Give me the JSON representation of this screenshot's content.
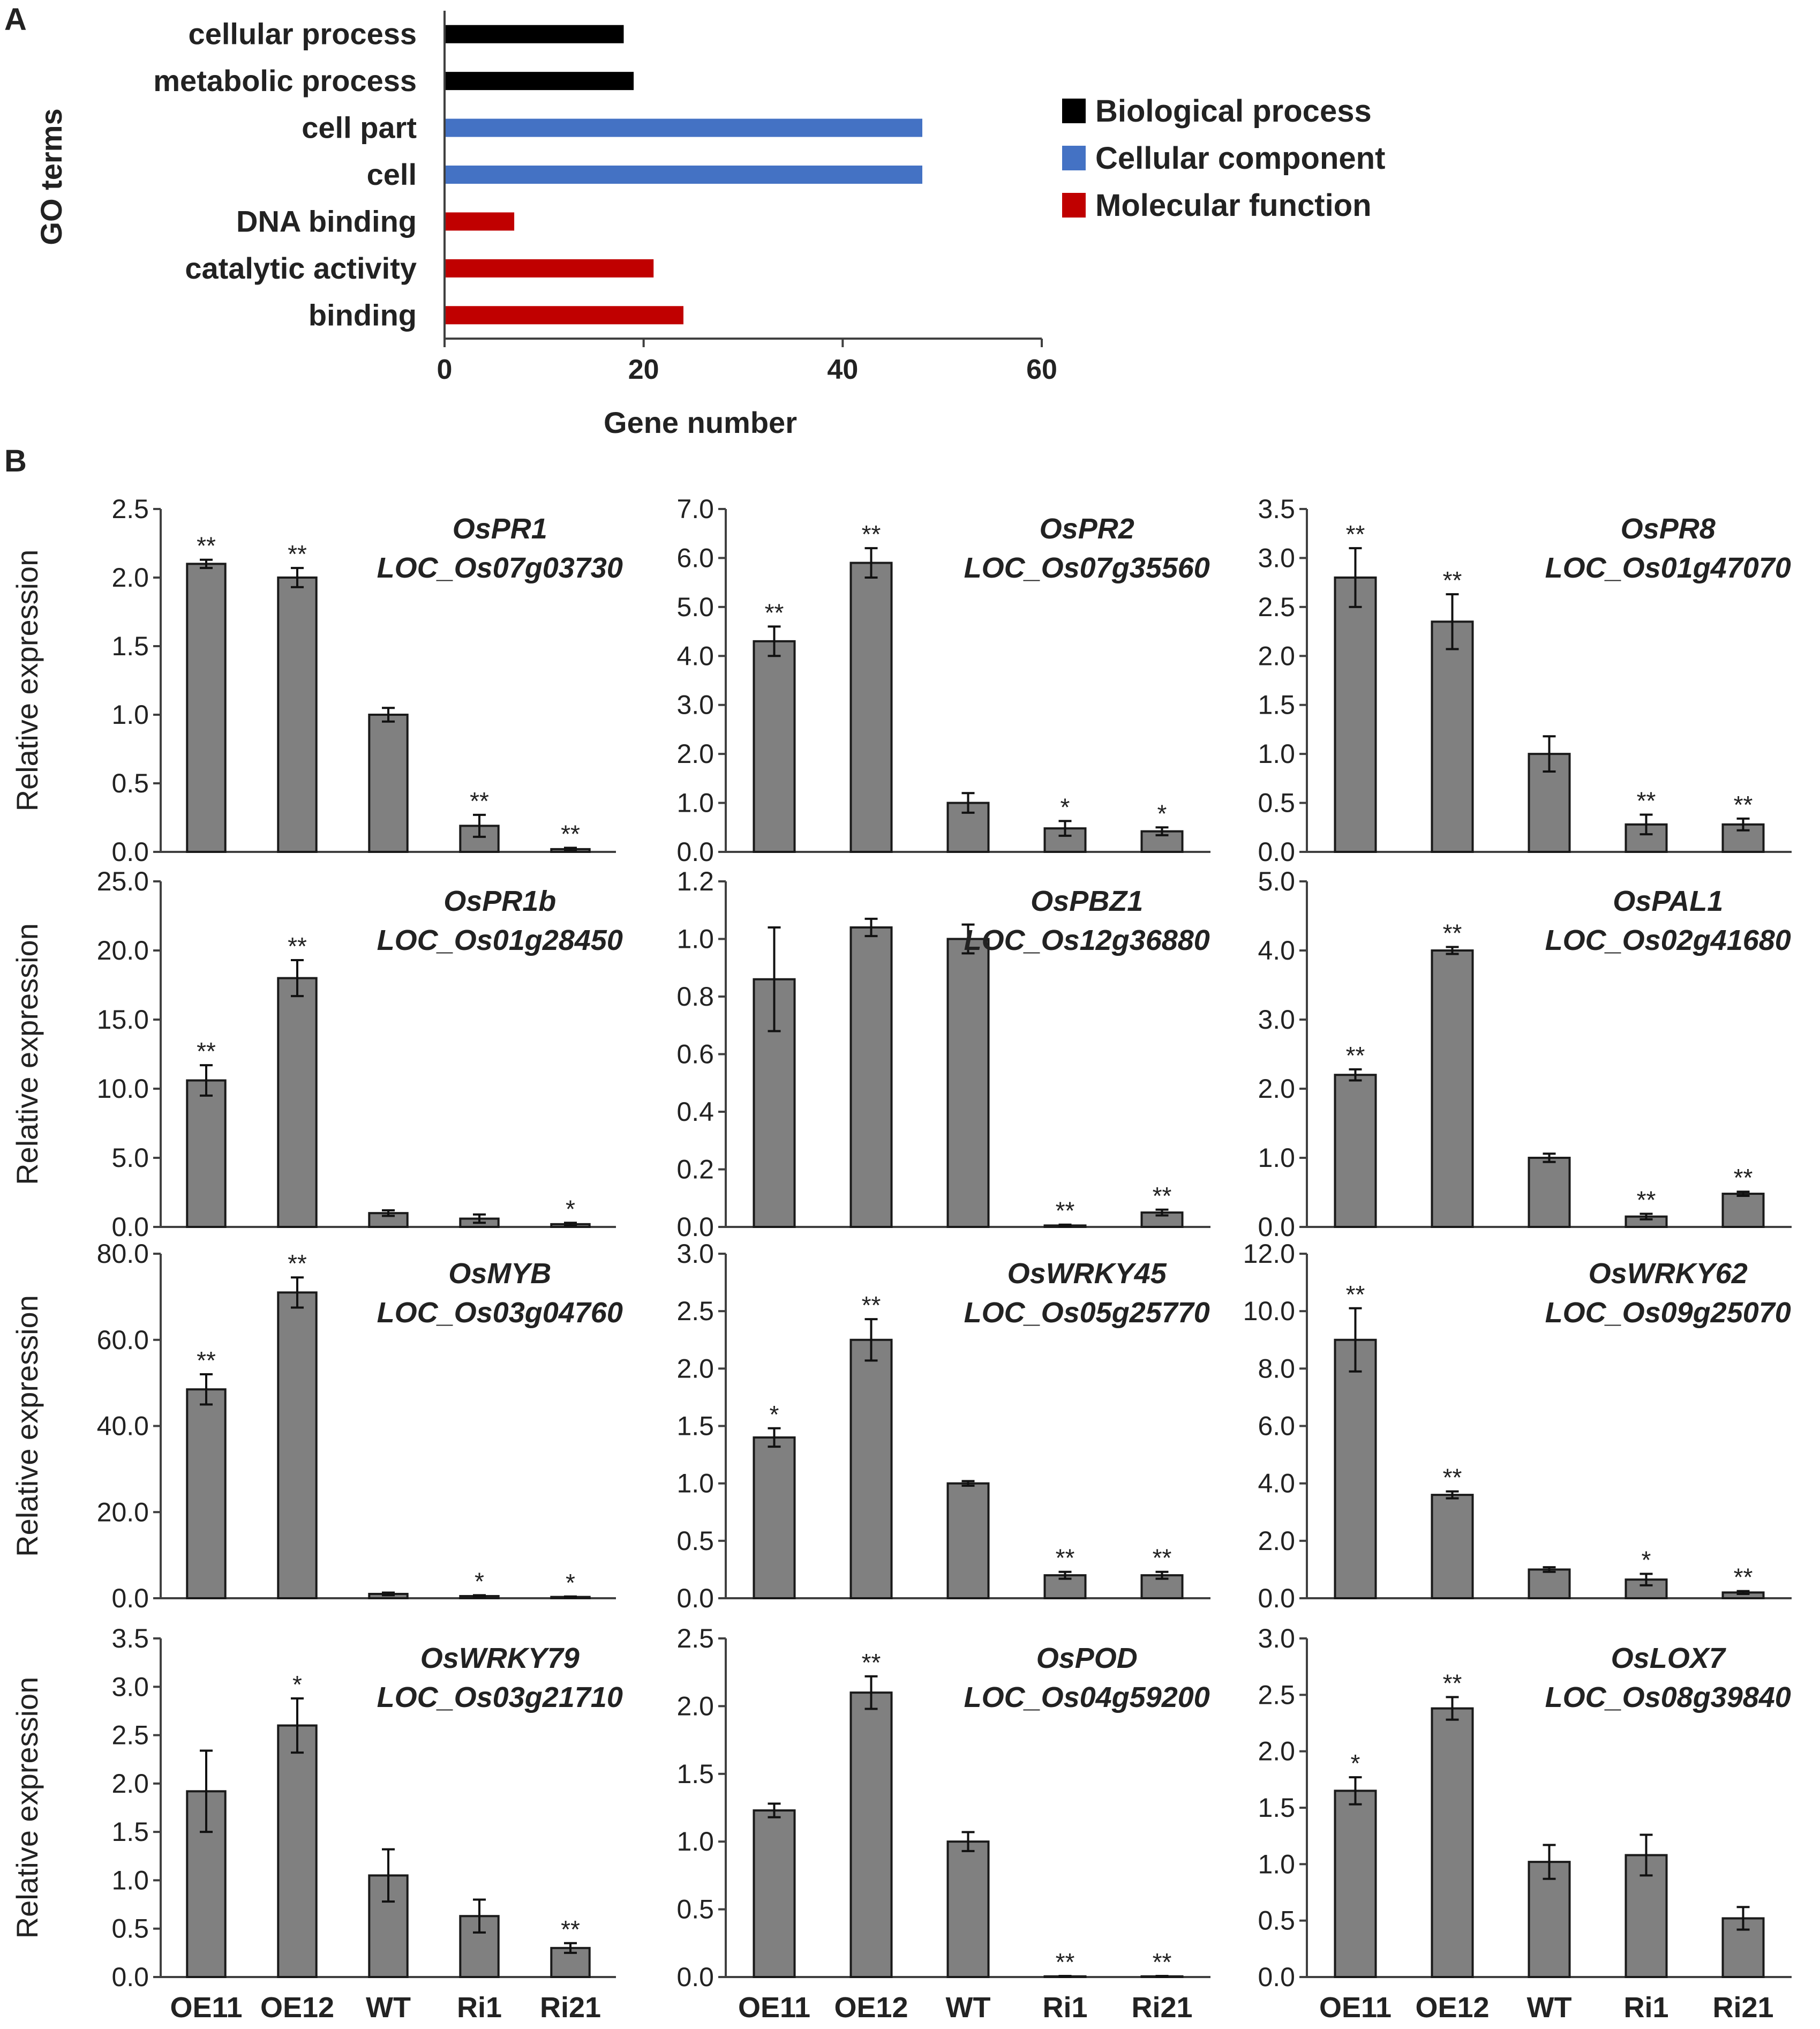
{
  "panel_a_label": "A",
  "panel_b_label": "B",
  "chart_data": [
    {
      "type": "bar",
      "orientation": "horizontal",
      "title": "",
      "xlabel": "Gene number",
      "ylabel": "GO terms",
      "xlim": [
        0,
        60
      ],
      "xticks": [
        "0",
        "20",
        "40",
        "60"
      ],
      "categories": [
        "cellular process",
        "metabolic process",
        "cell part",
        "cell",
        "DNA binding",
        "catalytic activity",
        "binding"
      ],
      "values": [
        18,
        19,
        48,
        48,
        7,
        21,
        24
      ],
      "groups": [
        "Biological process",
        "Biological process",
        "Cellular component",
        "Cellular component",
        "Molecular function",
        "Molecular function",
        "Molecular function"
      ],
      "legend": [
        {
          "label": "Biological process",
          "color": "#000000"
        },
        {
          "label": "Cellular component",
          "color": "#4472C4"
        },
        {
          "label": "Molecular function",
          "color": "#C00000"
        }
      ],
      "legend_position": "right"
    },
    {
      "type": "bar",
      "gene": "OsPR1",
      "locus": "LOC_Os07g03730",
      "ylabel": "Relative expression",
      "categories": [
        "OE11",
        "OE12",
        "WT",
        "Ri1",
        "Ri21"
      ],
      "values": [
        2.1,
        2.0,
        1.0,
        0.19,
        0.02
      ],
      "errors": [
        0.03,
        0.07,
        0.05,
        0.08,
        0.01
      ],
      "significance": [
        "**",
        "**",
        "",
        "**",
        "**"
      ],
      "ylim": [
        0,
        2.5
      ],
      "yticks": [
        "0.0",
        "0.5",
        "1.0",
        "1.5",
        "2.0",
        "2.5"
      ],
      "bar_color": "#808080"
    },
    {
      "type": "bar",
      "gene": "OsPR2",
      "locus": "LOC_Os07g35560",
      "categories": [
        "OE11",
        "OE12",
        "WT",
        "Ri1",
        "Ri21"
      ],
      "values": [
        4.3,
        5.9,
        1.0,
        0.48,
        0.42
      ],
      "errors": [
        0.3,
        0.3,
        0.2,
        0.15,
        0.08
      ],
      "significance": [
        "**",
        "**",
        "",
        "*",
        "*"
      ],
      "ylim": [
        0,
        7.0
      ],
      "yticks": [
        "0.0",
        "1.0",
        "2.0",
        "3.0",
        "4.0",
        "5.0",
        "6.0",
        "7.0"
      ],
      "bar_color": "#808080"
    },
    {
      "type": "bar",
      "gene": "OsPR8",
      "locus": "LOC_Os01g47070",
      "categories": [
        "OE11",
        "OE12",
        "WT",
        "Ri1",
        "Ri21"
      ],
      "values": [
        2.8,
        2.35,
        1.0,
        0.28,
        0.28
      ],
      "errors": [
        0.3,
        0.28,
        0.18,
        0.1,
        0.06
      ],
      "significance": [
        "**",
        "**",
        "",
        "**",
        "**"
      ],
      "ylim": [
        0,
        3.5
      ],
      "yticks": [
        "0.0",
        "0.5",
        "1.0",
        "1.5",
        "2.0",
        "2.5",
        "3.0",
        "3.5"
      ],
      "bar_color": "#808080"
    },
    {
      "type": "bar",
      "gene": "OsPR1b",
      "locus": "LOC_Os01g28450",
      "ylabel": "Relative expression",
      "categories": [
        "OE11",
        "OE12",
        "WT",
        "Ri1",
        "Ri21"
      ],
      "values": [
        10.6,
        18.0,
        1.0,
        0.6,
        0.2
      ],
      "errors": [
        1.1,
        1.3,
        0.2,
        0.3,
        0.1
      ],
      "significance": [
        "**",
        "**",
        "",
        "",
        "*"
      ],
      "ylim": [
        0,
        25.0
      ],
      "yticks": [
        "0.0",
        "5.0",
        "10.0",
        "15.0",
        "20.0",
        "25.0"
      ],
      "bar_color": "#808080"
    },
    {
      "type": "bar",
      "gene": "OsPBZ1",
      "locus": "LOC_Os12g36880",
      "categories": [
        "OE11",
        "OE12",
        "WT",
        "Ri1",
        "Ri21"
      ],
      "values": [
        0.86,
        1.04,
        1.0,
        0.005,
        0.05
      ],
      "errors": [
        0.18,
        0.03,
        0.05,
        0.003,
        0.01
      ],
      "significance": [
        "",
        "",
        "",
        "**",
        "**"
      ],
      "ylim": [
        0,
        1.2
      ],
      "yticks": [
        "0.0",
        "0.2",
        "0.4",
        "0.6",
        "0.8",
        "1.0",
        "1.2"
      ],
      "bar_color": "#808080"
    },
    {
      "type": "bar",
      "gene": "OsPAL1",
      "locus": "LOC_Os02g41680",
      "categories": [
        "OE11",
        "OE12",
        "WT",
        "Ri1",
        "Ri21"
      ],
      "values": [
        2.2,
        4.0,
        1.0,
        0.15,
        0.48
      ],
      "errors": [
        0.08,
        0.05,
        0.06,
        0.04,
        0.03
      ],
      "significance": [
        "**",
        "**",
        "",
        "**",
        "**"
      ],
      "ylim": [
        0,
        5.0
      ],
      "yticks": [
        "0.0",
        "1.0",
        "2.0",
        "3.0",
        "4.0",
        "5.0"
      ],
      "bar_color": "#808080"
    },
    {
      "type": "bar",
      "gene": "OsMYB",
      "locus": "LOC_Os03g04760",
      "ylabel": "Relative expression",
      "categories": [
        "OE11",
        "OE12",
        "WT",
        "Ri1",
        "Ri21"
      ],
      "values": [
        48.5,
        71.0,
        1.0,
        0.5,
        0.3
      ],
      "errors": [
        3.5,
        3.5,
        0.3,
        0.2,
        0.1
      ],
      "significance": [
        "**",
        "**",
        "",
        "*",
        "*"
      ],
      "ylim": [
        0,
        80.0
      ],
      "yticks": [
        "0.0",
        "20.0",
        "40.0",
        "60.0",
        "80.0"
      ],
      "bar_color": "#808080"
    },
    {
      "type": "bar",
      "gene": "OsWRKY45",
      "locus": "LOC_Os05g25770",
      "categories": [
        "OE11",
        "OE12",
        "WT",
        "Ri1",
        "Ri21"
      ],
      "values": [
        1.4,
        2.25,
        1.0,
        0.2,
        0.2
      ],
      "errors": [
        0.08,
        0.18,
        0.02,
        0.03,
        0.03
      ],
      "significance": [
        "*",
        "**",
        "",
        "**",
        "**"
      ],
      "ylim": [
        0,
        3.0
      ],
      "yticks": [
        "0.0",
        "0.5",
        "1.0",
        "1.5",
        "2.0",
        "2.5",
        "3.0"
      ],
      "bar_color": "#808080"
    },
    {
      "type": "bar",
      "gene": "OsWRKY62",
      "locus": "LOC_Os09g25070",
      "categories": [
        "OE11",
        "OE12",
        "WT",
        "Ri1",
        "Ri21"
      ],
      "values": [
        9.0,
        3.6,
        1.0,
        0.65,
        0.2
      ],
      "errors": [
        1.1,
        0.12,
        0.08,
        0.2,
        0.05
      ],
      "significance": [
        "**",
        "**",
        "",
        "*",
        "**"
      ],
      "ylim": [
        0,
        12.0
      ],
      "yticks": [
        "0.0",
        "2.0",
        "4.0",
        "6.0",
        "8.0",
        "10.0",
        "12.0"
      ],
      "bar_color": "#808080"
    },
    {
      "type": "bar",
      "gene": "OsWRKY79",
      "locus": "LOC_Os03g21710",
      "ylabel": "Relative expression",
      "categories": [
        "OE11",
        "OE12",
        "WT",
        "Ri1",
        "Ri21"
      ],
      "values": [
        1.92,
        2.6,
        1.05,
        0.63,
        0.3
      ],
      "errors": [
        0.42,
        0.28,
        0.27,
        0.17,
        0.05
      ],
      "significance": [
        "",
        "*",
        "",
        "",
        "**"
      ],
      "ylim": [
        0,
        3.5
      ],
      "yticks": [
        "0.0",
        "0.5",
        "1.0",
        "1.5",
        "2.0",
        "2.5",
        "3.0",
        "3.5"
      ],
      "bar_color": "#808080"
    },
    {
      "type": "bar",
      "gene": "OsPOD",
      "locus": "LOC_Os04g59200",
      "categories": [
        "OE11",
        "OE12",
        "WT",
        "Ri1",
        "Ri21"
      ],
      "values": [
        1.23,
        2.1,
        1.0,
        0.005,
        0.005
      ],
      "errors": [
        0.05,
        0.12,
        0.07,
        0.003,
        0.003
      ],
      "significance": [
        "",
        "**",
        "",
        "**",
        "**"
      ],
      "ylim": [
        0,
        2.5
      ],
      "yticks": [
        "0.0",
        "0.5",
        "1.0",
        "1.5",
        "2.0",
        "2.5"
      ],
      "bar_color": "#808080"
    },
    {
      "type": "bar",
      "gene": "OsLOX7",
      "locus": "LOC_Os08g39840",
      "categories": [
        "OE11",
        "OE12",
        "WT",
        "Ri1",
        "Ri21"
      ],
      "values": [
        1.65,
        2.38,
        1.02,
        1.08,
        0.52
      ],
      "errors": [
        0.12,
        0.1,
        0.15,
        0.18,
        0.1
      ],
      "significance": [
        "*",
        "**",
        "",
        "",
        ""
      ],
      "ylim": [
        0,
        3.0
      ],
      "yticks": [
        "0.0",
        "0.5",
        "1.0",
        "1.5",
        "2.0",
        "2.5",
        "3.0"
      ],
      "bar_color": "#808080"
    }
  ]
}
